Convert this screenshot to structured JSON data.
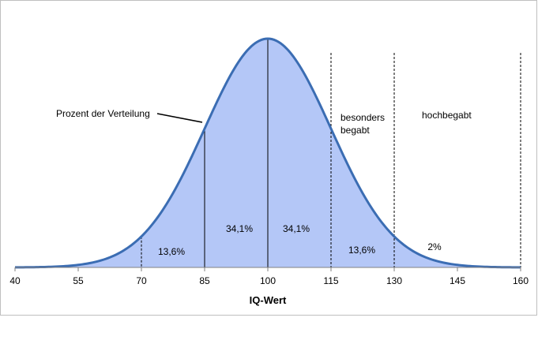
{
  "chart_data": {
    "type": "area",
    "xlabel": "IQ-Wert",
    "xlim": [
      40,
      160
    ],
    "x_ticks": [
      "40",
      "55",
      "70",
      "85",
      "100",
      "115",
      "130",
      "145",
      "160"
    ],
    "distribution": {
      "mean": 100,
      "sd": 15
    },
    "boundaries": [
      70,
      85,
      100,
      115,
      130,
      160
    ],
    "segments": [
      {
        "from": 70,
        "to": 85,
        "label": "13,6%"
      },
      {
        "from": 85,
        "to": 100,
        "label": "34,1%"
      },
      {
        "from": 100,
        "to": 115,
        "label": "34,1%"
      },
      {
        "from": 115,
        "to": 130,
        "label": "13,6%"
      },
      {
        "from": 130,
        "to": 160,
        "label": "2%"
      }
    ],
    "annotations": {
      "distribution_note": "Prozent der Verteilung",
      "gifted_line1": "besonders",
      "gifted_line2": "begabt",
      "highly_gifted": "hochbegabt"
    },
    "colors": {
      "fill": "#b4c7f7",
      "curve": "#3b6db3",
      "axis": "#808080",
      "divider": "#000000"
    }
  }
}
